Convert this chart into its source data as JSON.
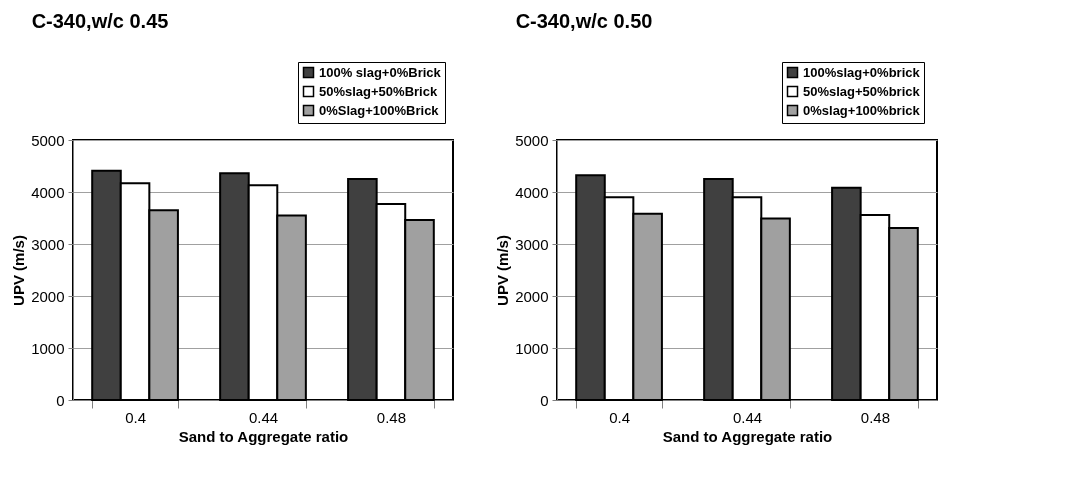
{
  "chart_data": [
    {
      "type": "bar",
      "title": "C-340,w/c 0.45",
      "xlabel": "Sand to Aggregate ratio",
      "ylabel": "UPV (m/s)",
      "categories": [
        "0.4",
        "0.44",
        "0.48"
      ],
      "series": [
        {
          "name": "100% slag+0%Brick",
          "color": "#404040",
          "values": [
            4410,
            4360,
            4250
          ]
        },
        {
          "name": "50%slag+50%Brick",
          "color": "#ffffff",
          "values": [
            4170,
            4130,
            3770
          ]
        },
        {
          "name": "0%Slag+100%Brick",
          "color": "#a0a0a0",
          "values": [
            3650,
            3550,
            3460
          ]
        }
      ],
      "ylim": [
        0,
        5000
      ],
      "yticks": [
        0,
        1000,
        2000,
        3000,
        4000,
        5000
      ],
      "grid": "y",
      "legend": "top right"
    },
    {
      "type": "bar",
      "title": "C-340,w/c 0.50",
      "xlabel": "Sand to Aggregate ratio",
      "ylabel": "UPV (m/s)",
      "categories": [
        "0.4",
        "0.44",
        "0.48"
      ],
      "series": [
        {
          "name": "100%slag+0%brick",
          "color": "#404040",
          "values": [
            4320,
            4250,
            4080
          ]
        },
        {
          "name": "50%slag+50%brick",
          "color": "#ffffff",
          "values": [
            3900,
            3900,
            3560
          ]
        },
        {
          "name": "0%slag+100%brick",
          "color": "#a0a0a0",
          "values": [
            3580,
            3490,
            3310
          ]
        }
      ],
      "ylim": [
        0,
        5000
      ],
      "yticks": [
        0,
        1000,
        2000,
        3000,
        4000,
        5000
      ],
      "grid": "y",
      "legend": "top right"
    }
  ]
}
